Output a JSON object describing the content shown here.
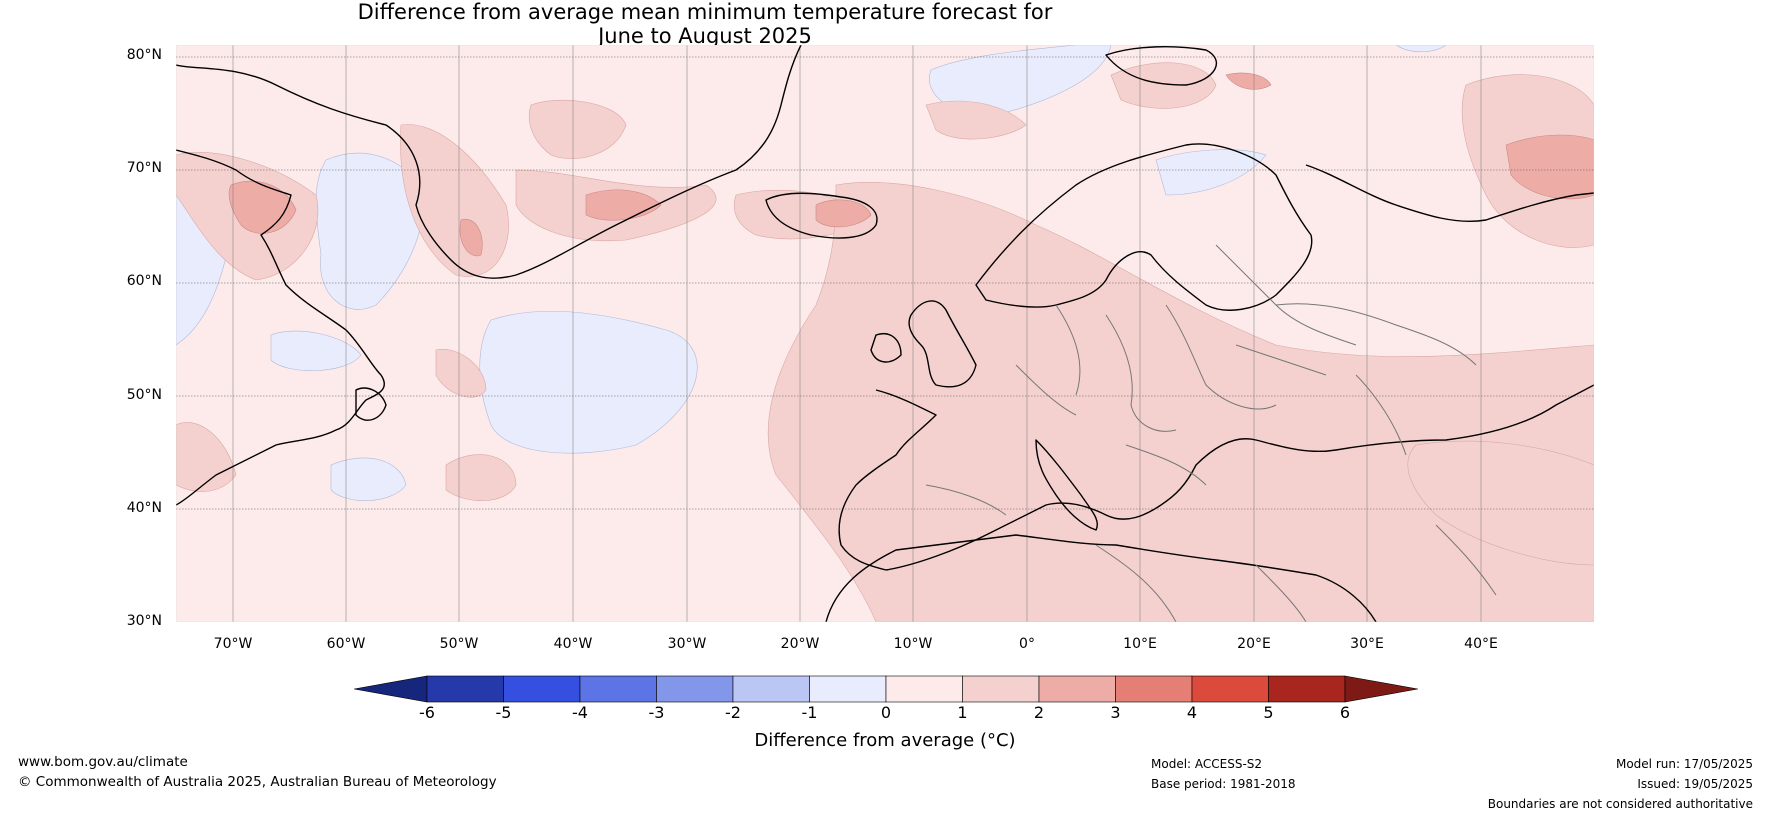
{
  "title_line1": "Difference from average mean minimum temperature forecast for",
  "title_line2": "June to August 2025",
  "lat_labels": [
    "80°N",
    "70°N",
    "60°N",
    "50°N",
    "40°N",
    "30°N"
  ],
  "lon_labels": [
    "70°W",
    "60°W",
    "50°W",
    "40°W",
    "30°W",
    "20°W",
    "10°W",
    "0°",
    "10°E",
    "20°E",
    "30°E",
    "40°E"
  ],
  "colorbar": {
    "ticks": [
      "-6",
      "-5",
      "-4",
      "-3",
      "-2",
      "-1",
      "0",
      "1",
      "2",
      "3",
      "4",
      "5",
      "6"
    ],
    "colors": [
      "#17267d",
      "#2539ab",
      "#3550e0",
      "#5c74e6",
      "#8397ea",
      "#bcc6f4",
      "#e9ecfc",
      "#fcebea",
      "#f4d1cf",
      "#eeaca7",
      "#e57f76",
      "#dc4a3c",
      "#a9261f",
      "#7d1a16"
    ],
    "label": "Difference from average (°C)"
  },
  "footer": {
    "website": "www.bom.gov.au/climate",
    "copyright": "© Commonwealth of Australia 2025, Australian Bureau of Meteorology",
    "model": "Model: ACCESS-S2",
    "base_period": "Base period: 1981-2018",
    "model_run": "Model run: 17/05/2025",
    "issued": "Issued: 19/05/2025",
    "disclaimer": "Boundaries are not considered authoritative"
  }
}
